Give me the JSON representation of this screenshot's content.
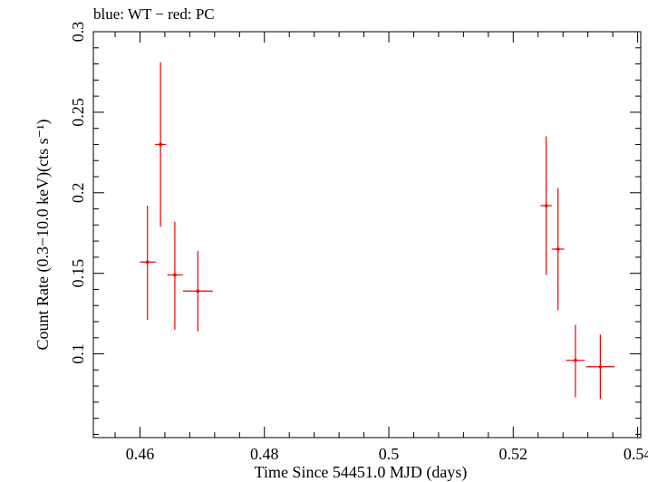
{
  "chart_data": {
    "type": "scatter",
    "title": "blue: WT − red: PC",
    "xlabel": "Time Since 54451.0 MJD (days)",
    "ylabel": "Count Rate (0.3−10.0 keV)(cts s⁻¹)",
    "xlim": [
      0.4525,
      0.5405
    ],
    "ylim": [
      0.048,
      0.3
    ],
    "x_ticks": [
      0.46,
      0.48,
      0.5,
      0.52,
      0.54
    ],
    "x_tick_labels": [
      "0.46",
      "0.48",
      "0.5",
      "0.52",
      "0.54"
    ],
    "y_ticks": [
      0.1,
      0.15,
      0.2,
      0.25,
      0.3
    ],
    "y_tick_labels": [
      "0.1",
      "0.15",
      "0.2",
      "0.25",
      "0.3"
    ],
    "grid": false,
    "series": [
      {
        "name": "PC",
        "color": "#ee0000",
        "points": [
          {
            "x": 0.4612,
            "xerr_low": 0.0012,
            "xerr_high": 0.0013,
            "y": 0.157,
            "yerr_low": 0.036,
            "yerr_high": 0.035
          },
          {
            "x": 0.4633,
            "xerr_low": 0.0009,
            "xerr_high": 0.0009,
            "y": 0.23,
            "yerr_low": 0.051,
            "yerr_high": 0.051
          },
          {
            "x": 0.4656,
            "xerr_low": 0.0012,
            "xerr_high": 0.0013,
            "y": 0.149,
            "yerr_low": 0.034,
            "yerr_high": 0.033
          },
          {
            "x": 0.4693,
            "xerr_low": 0.0024,
            "xerr_high": 0.0024,
            "y": 0.139,
            "yerr_low": 0.025,
            "yerr_high": 0.025
          },
          {
            "x": 0.5253,
            "xerr_low": 0.0009,
            "xerr_high": 0.0009,
            "y": 0.192,
            "yerr_low": 0.043,
            "yerr_high": 0.043
          },
          {
            "x": 0.5272,
            "xerr_low": 0.001,
            "xerr_high": 0.001,
            "y": 0.165,
            "yerr_low": 0.038,
            "yerr_high": 0.038
          },
          {
            "x": 0.53,
            "xerr_low": 0.0015,
            "xerr_high": 0.0015,
            "y": 0.096,
            "yerr_low": 0.023,
            "yerr_high": 0.022
          },
          {
            "x": 0.534,
            "xerr_low": 0.0023,
            "xerr_high": 0.0023,
            "y": 0.092,
            "yerr_low": 0.02,
            "yerr_high": 0.02
          }
        ]
      }
    ]
  }
}
